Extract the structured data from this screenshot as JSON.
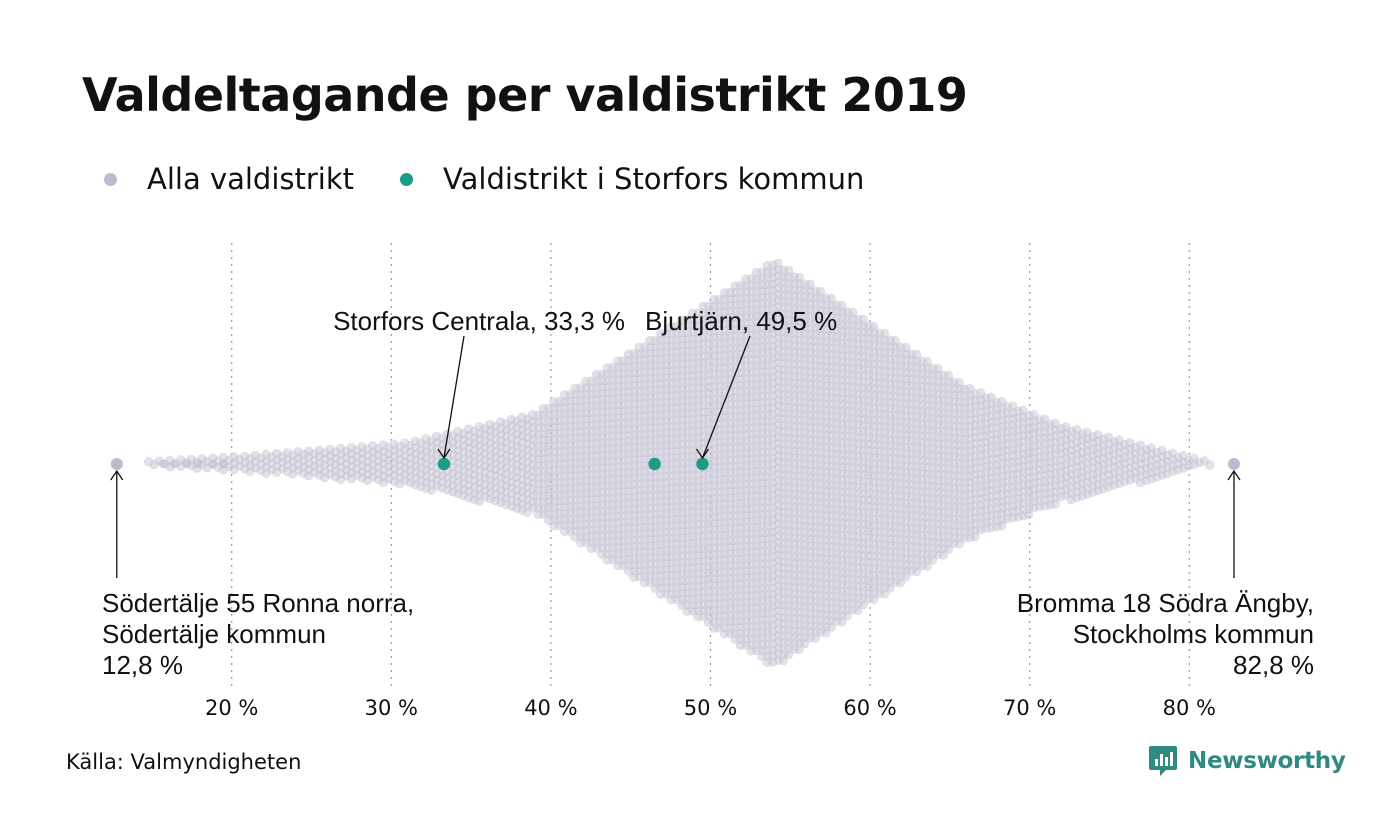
{
  "title": "Valdeltagande per valdistrikt 2019",
  "legend": [
    {
      "label": "Alla valdistrikt",
      "color": "#bdbbcb"
    },
    {
      "label": "Valdistrikt i Storfors kommun",
      "color": "#1a9c89"
    }
  ],
  "source": "Källa: Valmyndigheten",
  "brand": "Newsworthy",
  "colors": {
    "all": "#bdbbcb",
    "highlight": "#1a9c89",
    "brand": "#2f8a82",
    "grid": "#999999"
  },
  "chart_data": {
    "type": "scatter",
    "subtype": "beeswarm",
    "x_axis": {
      "min": 12,
      "max": 84,
      "ticks": [
        20,
        30,
        40,
        50,
        60,
        70,
        80
      ],
      "tick_labels": [
        "20 %",
        "30 %",
        "40 %",
        "50 %",
        "60 %",
        "70 %",
        "80 %"
      ]
    },
    "grid": "vertical dotted",
    "series": [
      {
        "name": "Alla valdistrikt",
        "distribution": "all election districts, range 12.8–82.8 %, peak near 54 %"
      },
      {
        "name": "Valdistrikt i Storfors kommun",
        "values": [
          33.3,
          46.5,
          49.5
        ]
      }
    ],
    "extremes": [
      {
        "value": 12.8
      },
      {
        "value": 82.8
      }
    ],
    "annotations": [
      {
        "x": 33.3,
        "lines": [
          "Storfors Centrala, 33,3 %"
        ],
        "placement": "above"
      },
      {
        "x": 49.5,
        "lines": [
          "Bjurtjärn, 49,5 %"
        ],
        "placement": "above"
      },
      {
        "x": 12.8,
        "lines": [
          "Södertälje 55 Ronna norra,",
          "Södertälje kommun",
          "12,8 %"
        ],
        "placement": "below-left"
      },
      {
        "x": 82.8,
        "lines": [
          "Bromma 18 Södra Ängby,",
          "Stockholms kommun",
          "82,8 %"
        ],
        "placement": "below-right"
      }
    ]
  }
}
